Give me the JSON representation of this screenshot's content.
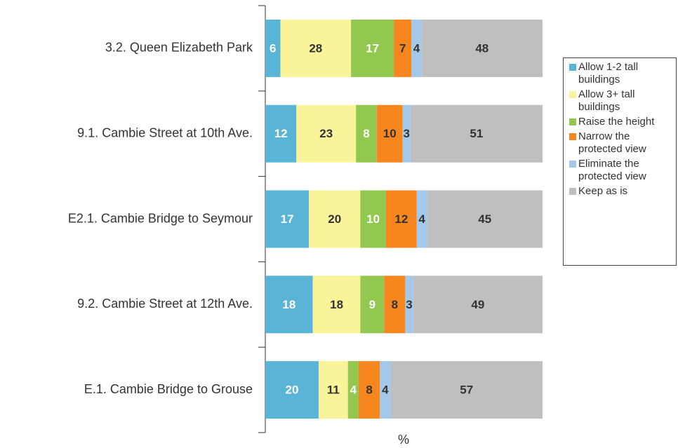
{
  "chart_data": {
    "type": "bar",
    "orientation": "horizontal",
    "stacked": "percent",
    "xlabel": "%",
    "categories": [
      "3.2. Queen Elizabeth Park",
      "9.1. Cambie Street at 10th Ave.",
      "E2.1. Cambie Bridge to Seymour",
      "9.2. Cambie Street at 12th Ave.",
      "E.1. Cambie Bridge to Grouse"
    ],
    "series": [
      {
        "name": "Allow 1-2 tall buildings",
        "color": "#5ab4d6",
        "label_color": "#ffffff",
        "values": [
          6,
          12,
          17,
          18,
          20
        ]
      },
      {
        "name": "Allow 3+ tall buildings",
        "color": "#f9f49a",
        "label_color": "#333333",
        "values": [
          28,
          23,
          20,
          18,
          11
        ]
      },
      {
        "name": "Raise the height",
        "color": "#92c850",
        "label_color": "#ffffff",
        "values": [
          17,
          8,
          10,
          9,
          4
        ]
      },
      {
        "name": "Narrow the protected view",
        "color": "#f7861f",
        "label_color": "#333333",
        "values": [
          7,
          10,
          12,
          8,
          8
        ]
      },
      {
        "name": "Eliminate the protected view",
        "color": "#a3c8ea",
        "label_color": "#333333",
        "values": [
          4,
          3,
          4,
          3,
          4
        ]
      },
      {
        "name": "Keep as is",
        "color": "#bfbfbf",
        "label_color": "#333333",
        "values": [
          48,
          51,
          45,
          49,
          57
        ]
      }
    ],
    "legend": "right"
  }
}
